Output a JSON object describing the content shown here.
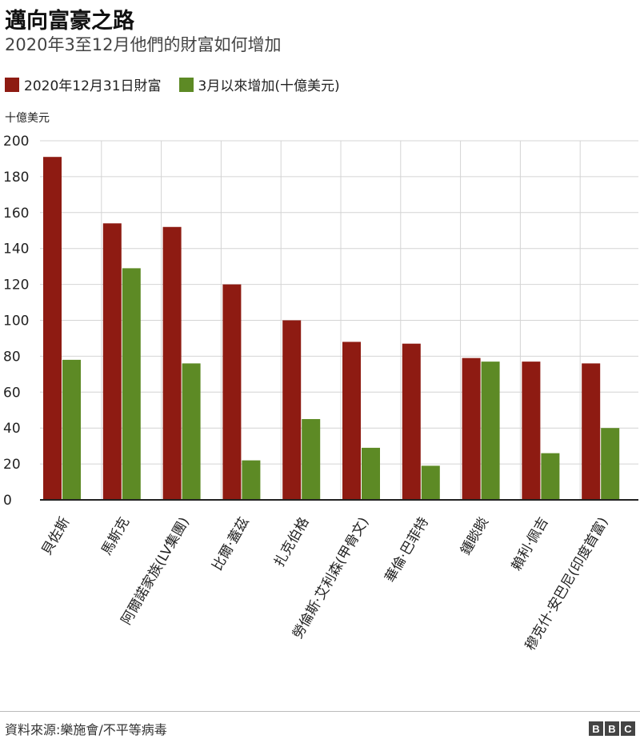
{
  "header": {
    "title": "邁向富豪之路",
    "subtitle": "2020年3至12月他們的財富如何增加"
  },
  "legend": [
    {
      "label": "2020年12月31日財富",
      "color": "#8e1b12"
    },
    {
      "label": "3月以來增加(十億美元)",
      "color": "#5d8a25"
    }
  ],
  "unit_label": "十億美元",
  "footer": {
    "source": "資料來源:樂施會/不平等病毒",
    "brand": [
      "B",
      "B",
      "C"
    ]
  },
  "chart_data": {
    "type": "bar",
    "categories": [
      "貝佐斯",
      "馬斯克",
      "阿爾諾家族(LV集團)",
      "比爾·蓋茲",
      "扎克伯格",
      "勞倫斯·艾利森(甲骨文)",
      "華倫·巴菲特",
      "鍾睒睒",
      "賴利·佩吉",
      "穆克什·安巴尼(印度首富)"
    ],
    "series": [
      {
        "name": "2020年12月31日財富",
        "color": "#8e1b12",
        "values": [
          191,
          154,
          152,
          120,
          100,
          88,
          87,
          79,
          77,
          76
        ]
      },
      {
        "name": "3月以來增加(十億美元)",
        "color": "#5d8a25",
        "values": [
          78,
          129,
          76,
          22,
          45,
          29,
          19,
          77,
          26,
          40
        ]
      }
    ],
    "ylim": [
      0,
      200
    ],
    "yticks": [
      0,
      20,
      40,
      60,
      80,
      100,
      120,
      140,
      160,
      180,
      200
    ],
    "grid": true,
    "legend_position": "top-left"
  }
}
